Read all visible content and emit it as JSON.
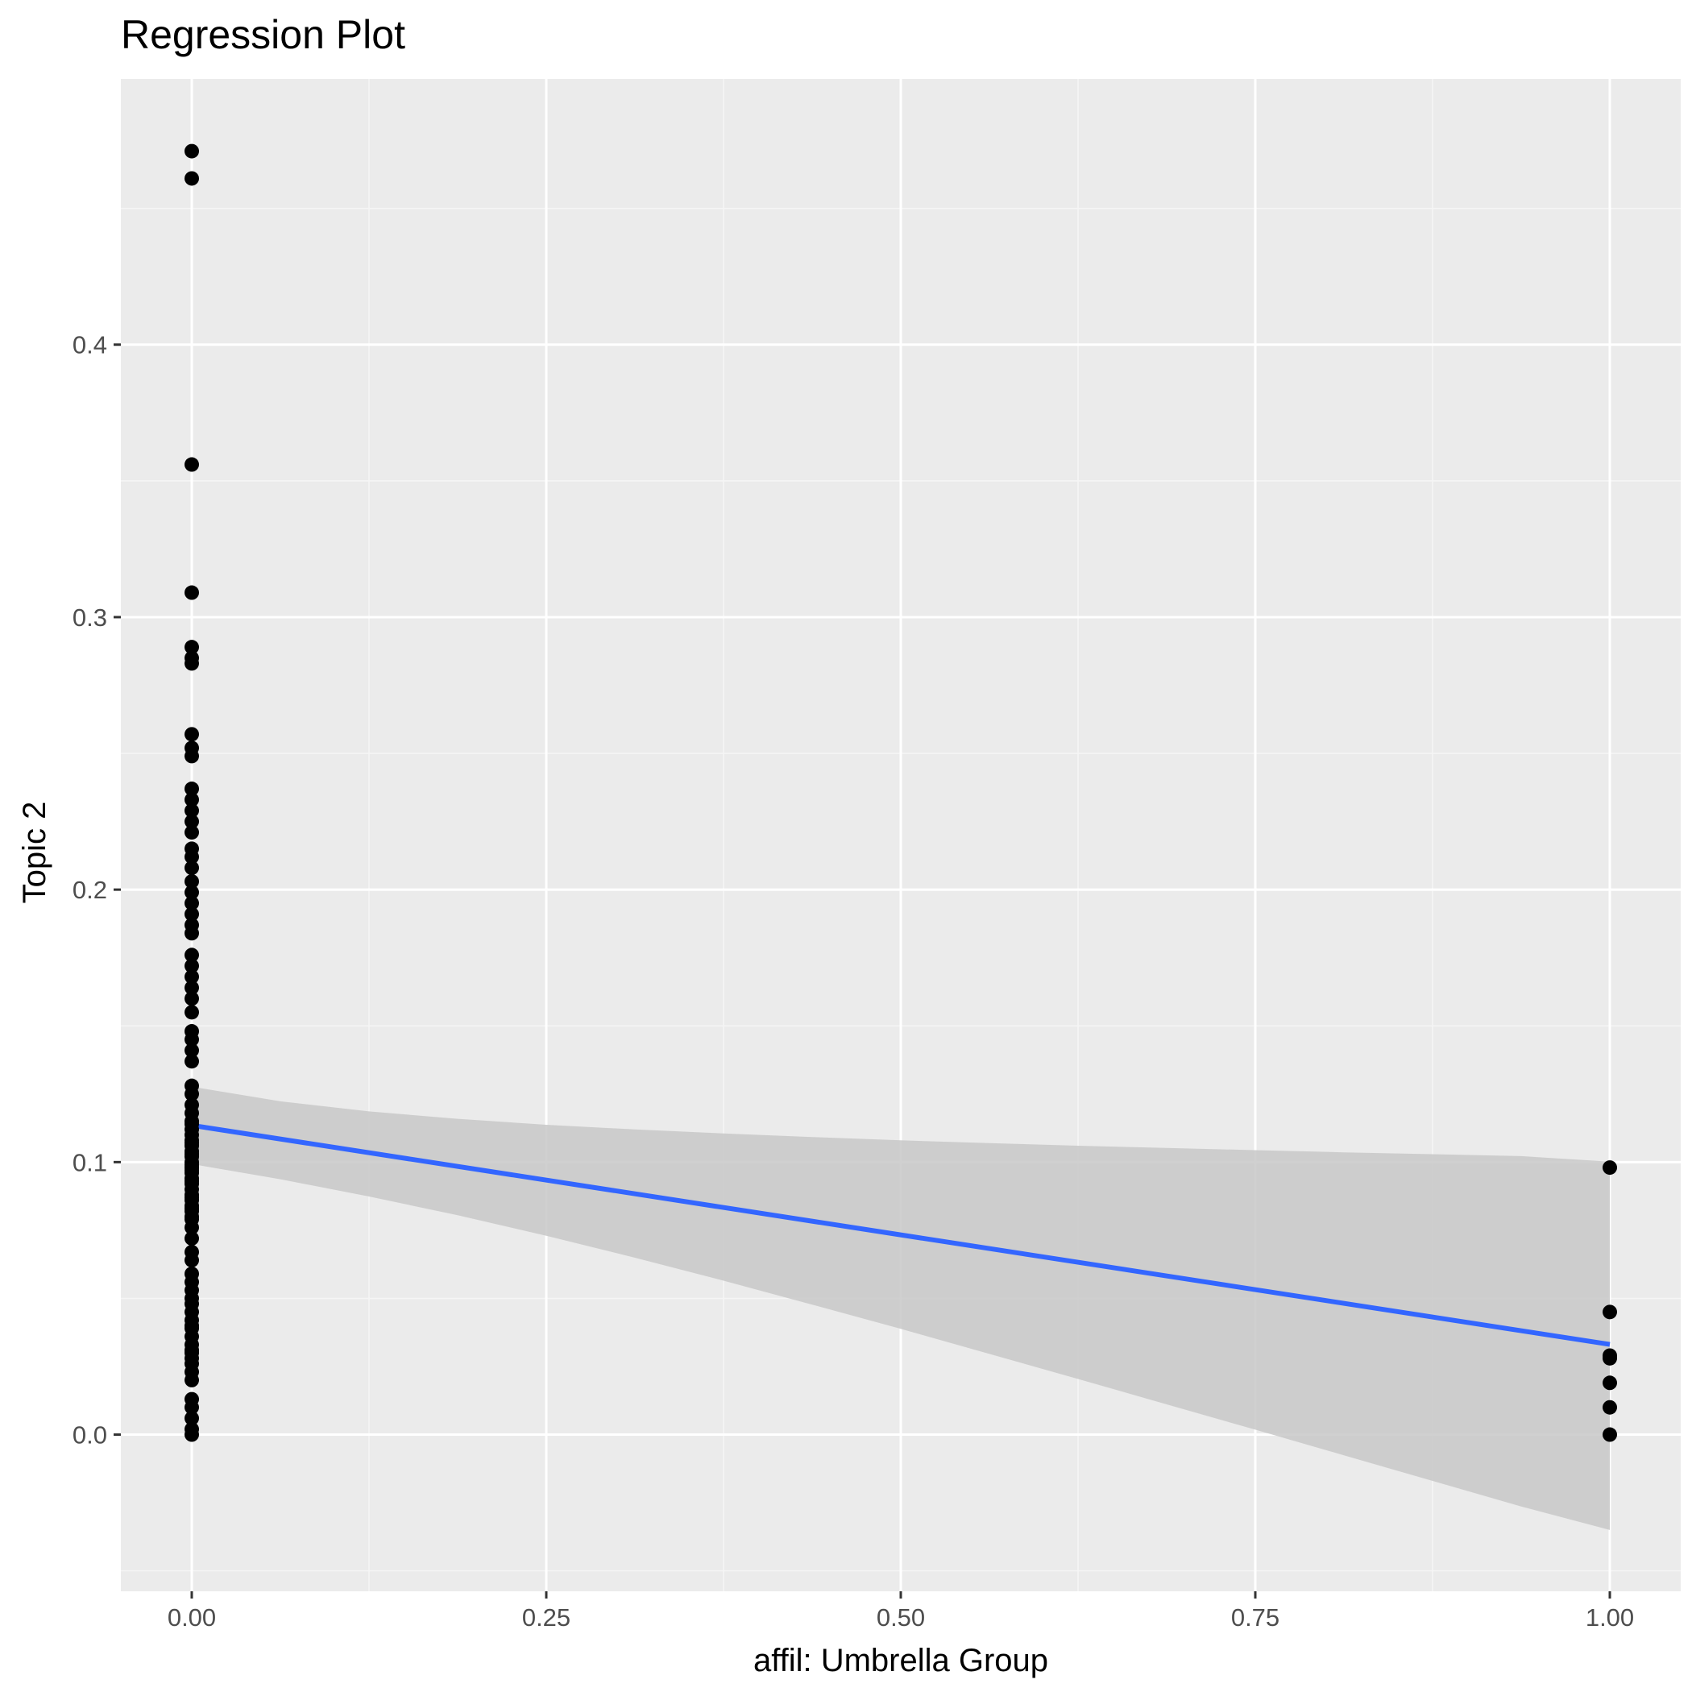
{
  "chart_data": {
    "type": "scatter",
    "title": "Regression Plot",
    "xlabel": "affil: Umbrella Group",
    "ylabel": "Topic 2",
    "xlim": [
      -0.05,
      1.05
    ],
    "ylim": [
      -0.0575,
      0.4975
    ],
    "x_ticks": [
      0.0,
      0.25,
      0.5,
      0.75,
      1.0
    ],
    "x_tick_labels": [
      "0.00",
      "0.25",
      "0.50",
      "0.75",
      "1.00"
    ],
    "y_ticks": [
      0.0,
      0.1,
      0.2,
      0.3,
      0.4
    ],
    "y_tick_labels": [
      "0.0",
      "0.1",
      "0.2",
      "0.3",
      "0.4"
    ],
    "grid": true,
    "legend": "none",
    "colors": {
      "panel_background": "#ebebeb",
      "grid_major": "#ffffff",
      "grid_minor": "#f5f5f5",
      "points": "#000000",
      "fit_line": "#3366ff",
      "confidence_band": "#c8c8c8"
    },
    "series": [
      {
        "type": "scatter",
        "x": [
          0,
          0,
          0,
          0,
          0,
          0,
          0,
          0,
          0,
          0,
          0,
          0,
          0,
          0,
          0,
          0,
          0,
          0,
          0,
          0,
          0,
          0,
          0,
          0,
          0,
          0,
          0,
          0,
          0,
          0,
          0,
          0,
          0,
          0,
          0,
          0,
          0,
          0,
          0,
          0,
          0,
          0,
          0,
          0,
          0,
          0,
          0,
          0,
          0,
          0,
          0,
          0,
          0,
          0,
          0,
          0,
          0,
          0,
          0,
          0,
          0,
          0,
          0,
          0,
          0,
          0,
          0,
          0,
          0,
          0,
          0,
          0,
          0,
          0,
          0,
          0,
          0,
          0,
          0,
          0,
          0,
          0,
          0,
          0,
          0,
          0,
          0,
          0,
          0,
          0,
          0,
          1,
          1,
          1,
          1,
          1,
          1,
          1
        ],
        "y": [
          0.471,
          0.461,
          0.356,
          0.309,
          0.289,
          0.285,
          0.283,
          0.257,
          0.252,
          0.249,
          0.237,
          0.233,
          0.229,
          0.225,
          0.221,
          0.215,
          0.212,
          0.208,
          0.203,
          0.199,
          0.195,
          0.191,
          0.187,
          0.184,
          0.176,
          0.172,
          0.168,
          0.164,
          0.16,
          0.155,
          0.148,
          0.145,
          0.141,
          0.137,
          0.128,
          0.125,
          0.121,
          0.118,
          0.115,
          0.112,
          0.11,
          0.108,
          0.106,
          0.104,
          0.102,
          0.1,
          0.098,
          0.096,
          0.094,
          0.092,
          0.09,
          0.088,
          0.086,
          0.084,
          0.082,
          0.08,
          0.067,
          0.059,
          0.056,
          0.053,
          0.05,
          0.048,
          0.045,
          0.042,
          0.039,
          0.036,
          0.033,
          0.03,
          0.028,
          0.026,
          0.023,
          0.013,
          0.01,
          0.006,
          0.002,
          0.0,
          0.114,
          0.107,
          0.103,
          0.099,
          0.097,
          0.093,
          0.087,
          0.083,
          0.079,
          0.076,
          0.072,
          0.064,
          0.04,
          0.031,
          0.02,
          0.098,
          0.045,
          0.029,
          0.028,
          0.019,
          0.01,
          0.0
        ]
      },
      {
        "type": "line",
        "x": [
          0,
          1
        ],
        "y": [
          0.1135,
          0.0331
        ]
      },
      {
        "type": "area",
        "x": [
          0,
          0.0625,
          0.125,
          0.1875,
          0.25,
          0.3125,
          0.375,
          0.4375,
          0.5,
          0.5625,
          0.625,
          0.6875,
          0.75,
          0.8125,
          0.875,
          0.9375,
          1.0
        ],
        "upper": [
          0.1277,
          0.1223,
          0.1186,
          0.1159,
          0.1137,
          0.112,
          0.1105,
          0.1092,
          0.108,
          0.107,
          0.106,
          0.1052,
          0.1044,
          0.1036,
          0.1029,
          0.1022,
          0.1002
        ],
        "lower": [
          0.0993,
          0.0937,
          0.0874,
          0.0805,
          0.073,
          0.0649,
          0.0565,
          0.0477,
          0.0388,
          0.0296,
          0.0204,
          0.0111,
          0.0018,
          -0.0076,
          -0.017,
          -0.0264,
          -0.035
        ]
      }
    ]
  }
}
